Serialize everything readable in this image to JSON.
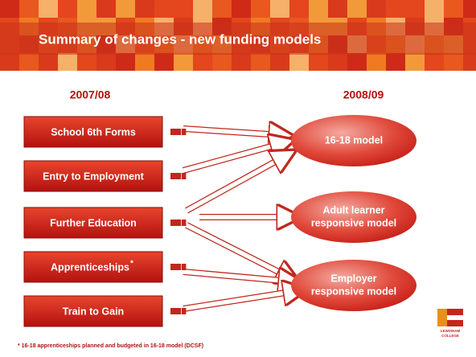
{
  "header": {
    "title": "Summary of changes - new funding models"
  },
  "columns": {
    "left": "2007/08",
    "right": "2008/09"
  },
  "sources": [
    {
      "label": "School 6th Forms"
    },
    {
      "label": "Entry to Employment"
    },
    {
      "label": "Further Education"
    },
    {
      "label": "Apprenticeships",
      "marker": "*"
    },
    {
      "label": "Train to Gain"
    }
  ],
  "models": [
    {
      "lines": [
        "16-18 model"
      ]
    },
    {
      "lines": [
        "Adult learner",
        "responsive model"
      ]
    },
    {
      "lines": [
        "Employer",
        "responsive model"
      ]
    }
  ],
  "footnote": "* 16-18 apprenticeships planned and budgeted in 16-18 model (DCSF)",
  "logo": {
    "line1": "LEWISHAM",
    "line2": "COLLEGE"
  }
}
